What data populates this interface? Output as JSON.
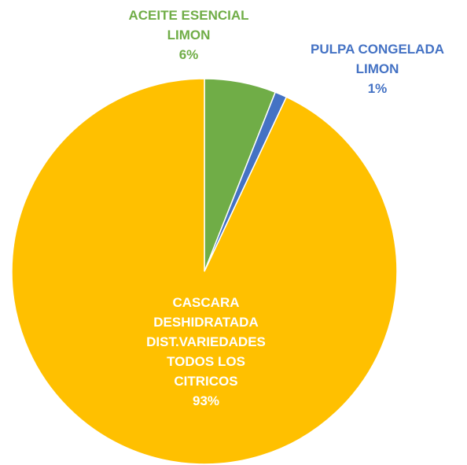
{
  "chart_data": {
    "type": "pie",
    "categories": [
      "ACEITE ESENCIAL LIMON",
      "PULPA CONGELADA LIMON",
      "CASCARA DESHIDRATADA DIST.VARIEDADES TODOS LOS CITRICOS"
    ],
    "values": [
      6,
      1,
      93
    ],
    "value_labels": [
      "6%",
      "1%",
      "93%"
    ],
    "colors": [
      "#70ad47",
      "#4472c4",
      "#ffc000"
    ]
  }
}
